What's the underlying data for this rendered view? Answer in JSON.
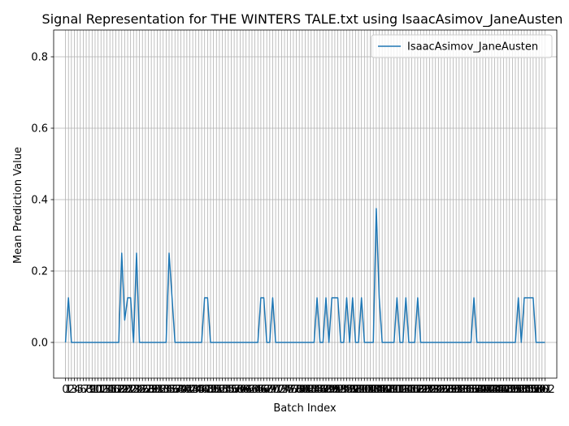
{
  "chart_data": {
    "type": "line",
    "title": "Signal Representation for THE WINTERS TALE.txt using IsaacAsimov_JaneAusten",
    "xlabel": "Batch Index",
    "ylabel": "Mean Prediction Value",
    "xlim": [
      -4,
      166
    ],
    "ylim": [
      -0.1,
      0.875
    ],
    "yticks": [
      0.0,
      0.2,
      0.4,
      0.6,
      0.8
    ],
    "ytick_labels": [
      "0.0",
      "0.2",
      "0.4",
      "0.6",
      "0.8"
    ],
    "grid": true,
    "legend_position": "top-right",
    "series": [
      {
        "name": "IsaacAsimov_JaneAusten",
        "color": "#1f77b4",
        "x": [
          0,
          1,
          2,
          3,
          4,
          5,
          6,
          7,
          8,
          9,
          10,
          11,
          12,
          13,
          14,
          15,
          16,
          17,
          18,
          19,
          20,
          21,
          22,
          23,
          24,
          25,
          26,
          27,
          28,
          29,
          30,
          31,
          32,
          33,
          34,
          35,
          36,
          37,
          38,
          39,
          40,
          41,
          42,
          43,
          44,
          45,
          46,
          47,
          48,
          49,
          50,
          51,
          52,
          53,
          54,
          55,
          56,
          57,
          58,
          59,
          60,
          61,
          62,
          63,
          64,
          65,
          66,
          67,
          68,
          69,
          70,
          71,
          72,
          73,
          74,
          75,
          76,
          77,
          78,
          79,
          80,
          81,
          82,
          83,
          84,
          85,
          86,
          87,
          88,
          89,
          90,
          91,
          92,
          93,
          94,
          95,
          96,
          97,
          98,
          99,
          100,
          101,
          102,
          103,
          104,
          105,
          106,
          107,
          108,
          109,
          110,
          111,
          112,
          113,
          114,
          115,
          116,
          117,
          118,
          119,
          120,
          121,
          122,
          123,
          124,
          125,
          126,
          127,
          128,
          129,
          130,
          131,
          132,
          133,
          134,
          135,
          136,
          137,
          138,
          139,
          140,
          141,
          142,
          143,
          144,
          145,
          146,
          147,
          148,
          149,
          150,
          151,
          152,
          153,
          154,
          155,
          156,
          157,
          158,
          159,
          160,
          161,
          162
        ],
        "values": [
          0,
          0.125,
          0,
          0,
          0,
          0,
          0,
          0,
          0,
          0,
          0,
          0,
          0,
          0,
          0,
          0,
          0,
          0,
          0,
          0.25,
          0.0625,
          0.125,
          0.125,
          0,
          0.25,
          0,
          0,
          0,
          0,
          0,
          0,
          0,
          0,
          0,
          0,
          0.25,
          0.125,
          0,
          0,
          0,
          0,
          0,
          0,
          0,
          0,
          0,
          0,
          0.125,
          0.125,
          0,
          0,
          0,
          0,
          0,
          0,
          0,
          0,
          0,
          0,
          0,
          0,
          0,
          0,
          0,
          0,
          0,
          0.125,
          0.125,
          0,
          0,
          0.125,
          0,
          0,
          0,
          0,
          0,
          0,
          0,
          0,
          0,
          0,
          0,
          0,
          0,
          0,
          0.125,
          0,
          0,
          0.125,
          0,
          0.125,
          0.125,
          0.125,
          0,
          0,
          0.125,
          0,
          0.125,
          0,
          0,
          0.125,
          0,
          0,
          0,
          0,
          0.375,
          0.125,
          0,
          0,
          0,
          0,
          0,
          0.125,
          0,
          0,
          0.125,
          0,
          0,
          0,
          0.125,
          0,
          0,
          0,
          0,
          0,
          0,
          0,
          0,
          0,
          0,
          0,
          0,
          0,
          0,
          0,
          0,
          0,
          0,
          0.125,
          0,
          0,
          0,
          0,
          0,
          0,
          0,
          0,
          0,
          0,
          0,
          0,
          0,
          0,
          0.125,
          0,
          0.125,
          0.125,
          0.125,
          0.125,
          0,
          0,
          0,
          0
        ]
      }
    ],
    "xtick_step": 1,
    "xtick_label_text_sample": "0 2 3 5 8 10 12 ... 163"
  }
}
